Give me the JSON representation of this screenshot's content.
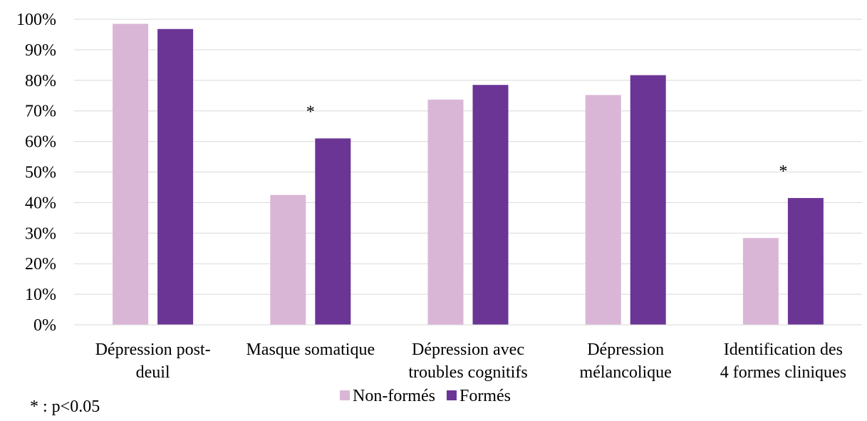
{
  "chart_data": {
    "type": "bar",
    "title": "",
    "xlabel": "",
    "ylabel": "",
    "ylim": [
      0,
      1
    ],
    "y_tick_labels": [
      "0%",
      "10%",
      "20%",
      "30%",
      "40%",
      "50%",
      "60%",
      "70%",
      "80%",
      "90%",
      "100%"
    ],
    "grid": "horizontal",
    "legend_position": "bottom",
    "categories": [
      [
        "Dépression post-",
        "deuil"
      ],
      [
        "Masque somatique"
      ],
      [
        "Dépression avec",
        "troubles cognitifs"
      ],
      [
        "Dépression",
        "mélancolique"
      ],
      [
        "Identification des",
        "4 formes cliniques"
      ]
    ],
    "series": [
      {
        "name": "Non-formés",
        "color": "#DAB6D6",
        "values": [
          0.985,
          0.425,
          0.737,
          0.752,
          0.284
        ]
      },
      {
        "name": "Formés",
        "color": "#6B3596",
        "values": [
          0.968,
          0.61,
          0.785,
          0.817,
          0.415
        ]
      }
    ],
    "significance_marks": [
      {
        "category_index": 1,
        "text": "*"
      },
      {
        "category_index": 4,
        "text": "*"
      }
    ],
    "footnote": "* : p<0.05"
  }
}
